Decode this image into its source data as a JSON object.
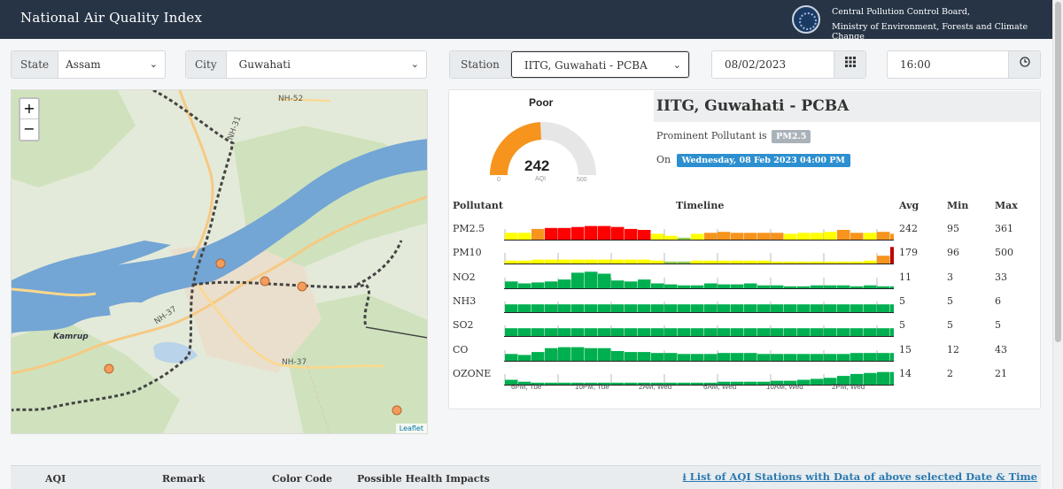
{
  "header": {
    "title": "National Air Quality Index",
    "org_line1": "Central Pollution Control Board,",
    "org_line2": "Ministry of Environment, Forests and Climate Change"
  },
  "filters": {
    "state_label": "State",
    "state_value": "Assam",
    "city_label": "City",
    "city_value": "Guwahati",
    "station_label": "Station",
    "station_value": "IITG, Guwahati - PCBA",
    "date_value": "08/02/2023",
    "time_value": "16:00"
  },
  "icons": {
    "chevron": "chevron-down-icon",
    "calendar": "calendar-icon",
    "clock": "clock-icon"
  },
  "map": {
    "zoom_in": "+",
    "zoom_out": "−",
    "attribution": "Leaflet",
    "labels": [
      "NH-52",
      "NH-31",
      "NH-37",
      "NH-37",
      "Kamrup"
    ]
  },
  "gauge": {
    "remark": "Poor",
    "aqi": "242",
    "aqi_label": "AQI",
    "min": "0",
    "max": "500",
    "fraction": 0.484,
    "color": "#f7941d"
  },
  "station": {
    "name": "IITG, Guwahati - PCBA",
    "prominent_label": "Prominent Pollutant is",
    "prominent_value": "PM2.5",
    "on_label": "On",
    "on_value": "Wednesday, 08 Feb 2023 04:00 PM"
  },
  "table_headers": {
    "pollutant": "Pollutant",
    "timeline": "Timeline",
    "avg": "Avg",
    "min": "Min",
    "max": "Max"
  },
  "colors": {
    "good": "#00b050",
    "satisfactory": "#92d050",
    "moderate": "#ffff00",
    "poor": "#f7941d",
    "very_poor": "#ff0000",
    "severe": "#c00000"
  },
  "pollutants": [
    {
      "name": "PM2.5",
      "avg": "242",
      "min": "95",
      "max": "361",
      "values": [
        0.35,
        0.35,
        0.55,
        0.6,
        0.6,
        0.65,
        0.7,
        0.7,
        0.65,
        0.55,
        0.5,
        0.3,
        0.2,
        0.1,
        0.3,
        0.35,
        0.4,
        0.35,
        0.35,
        0.35,
        0.35,
        0.3,
        0.35,
        0.35,
        0.4,
        0.5,
        0.35,
        0.35,
        0.4,
        0.3
      ],
      "colors": [
        "moderate",
        "moderate",
        "poor",
        "very_poor",
        "very_poor",
        "very_poor",
        "very_poor",
        "very_poor",
        "very_poor",
        "very_poor",
        "very_poor",
        "moderate",
        "moderate",
        "satisfactory",
        "moderate",
        "poor",
        "poor",
        "poor",
        "poor",
        "poor",
        "poor",
        "moderate",
        "moderate",
        "moderate",
        "moderate",
        "poor",
        "poor",
        "moderate",
        "poor",
        "poor"
      ]
    },
    {
      "name": "PM10",
      "avg": "179",
      "min": "96",
      "max": "500",
      "values": [
        0.15,
        0.15,
        0.2,
        0.2,
        0.2,
        0.2,
        0.2,
        0.2,
        0.2,
        0.2,
        0.2,
        0.15,
        0.1,
        0.1,
        0.15,
        0.15,
        0.15,
        0.15,
        0.15,
        0.15,
        0.1,
        0.1,
        0.1,
        0.1,
        0.1,
        0.1,
        0.1,
        0.15,
        0.4,
        0.85
      ],
      "colors": [
        "moderate",
        "moderate",
        "moderate",
        "moderate",
        "moderate",
        "moderate",
        "moderate",
        "moderate",
        "moderate",
        "moderate",
        "moderate",
        "moderate",
        "satisfactory",
        "satisfactory",
        "moderate",
        "moderate",
        "moderate",
        "moderate",
        "moderate",
        "moderate",
        "moderate",
        "moderate",
        "moderate",
        "moderate",
        "moderate",
        "moderate",
        "moderate",
        "moderate",
        "poor",
        "severe"
      ]
    },
    {
      "name": "NO2",
      "avg": "11",
      "min": "3",
      "max": "33",
      "values": [
        0.35,
        0.25,
        0.3,
        0.35,
        0.45,
        0.8,
        0.85,
        0.75,
        0.4,
        0.35,
        0.45,
        0.25,
        0.2,
        0.15,
        0.15,
        0.25,
        0.2,
        0.2,
        0.25,
        0.15,
        0.15,
        0.1,
        0.1,
        0.15,
        0.15,
        0.15,
        0.1,
        0.15,
        0.1,
        0.1
      ],
      "colors": []
    },
    {
      "name": "NH3",
      "avg": "5",
      "min": "5",
      "max": "6",
      "values": [
        0.4,
        0.4,
        0.4,
        0.4,
        0.4,
        0.4,
        0.4,
        0.4,
        0.4,
        0.4,
        0.4,
        0.4,
        0.4,
        0.4,
        0.4,
        0.4,
        0.4,
        0.4,
        0.4,
        0.4,
        0.4,
        0.4,
        0.4,
        0.4,
        0.4,
        0.4,
        0.4,
        0.4,
        0.4,
        0.4
      ],
      "colors": []
    },
    {
      "name": "SO2",
      "avg": "5",
      "min": "5",
      "max": "5",
      "values": [
        0.4,
        0.4,
        0.4,
        0.4,
        0.4,
        0.4,
        0.4,
        0.4,
        0.4,
        0.4,
        0.4,
        0.4,
        0.4,
        0.4,
        0.4,
        0.4,
        0.4,
        0.4,
        0.4,
        0.4,
        0.4,
        0.4,
        0.4,
        0.4,
        0.4,
        0.4,
        0.4,
        0.4,
        0.4,
        0.4
      ],
      "colors": []
    },
    {
      "name": "CO",
      "avg": "15",
      "min": "12",
      "max": "43",
      "values": [
        0.35,
        0.3,
        0.45,
        0.65,
        0.7,
        0.7,
        0.65,
        0.65,
        0.5,
        0.45,
        0.45,
        0.4,
        0.4,
        0.35,
        0.35,
        0.35,
        0.4,
        0.4,
        0.4,
        0.35,
        0.35,
        0.35,
        0.35,
        0.35,
        0.35,
        0.35,
        0.4,
        0.4,
        0.4,
        0.4
      ],
      "colors": []
    },
    {
      "name": "OZONE",
      "avg": "14",
      "min": "2",
      "max": "21",
      "values": [
        0.25,
        0.15,
        0.1,
        0.1,
        0.1,
        0.1,
        0.1,
        0.1,
        0.1,
        0.1,
        0.1,
        0.1,
        0.1,
        0.1,
        0.1,
        0.1,
        0.15,
        0.15,
        0.15,
        0.15,
        0.2,
        0.2,
        0.25,
        0.3,
        0.35,
        0.45,
        0.55,
        0.6,
        0.65,
        0.65
      ],
      "colors": []
    }
  ],
  "timeline_ticks": [
    "6PM, Tue",
    "10PM, Tue",
    "2AM, Wed",
    "6AM, Wed",
    "10AM, Wed",
    "2PM, Wed"
  ],
  "bottom": {
    "col_aqi": "AQI",
    "col_remark": "Remark",
    "col_color": "Color Code",
    "col_health": "Possible Health Impacts",
    "link": "⭳ List of AQI Stations with Data of above selected Date & Time"
  }
}
